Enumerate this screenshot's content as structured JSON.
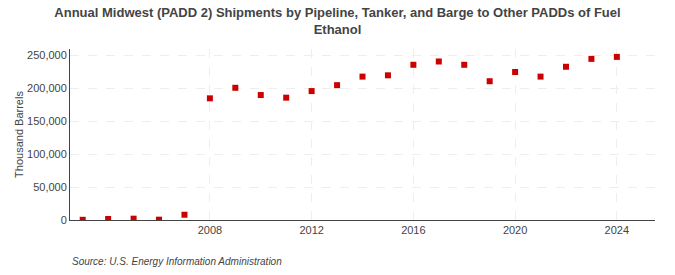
{
  "chart_data": {
    "type": "scatter",
    "title": "Annual Midwest (PADD 2) Shipments by Pipeline, Tanker, and Barge to Other PADDs of Fuel\nEthanol",
    "ylabel": "Thousand Barrels",
    "annotations": [
      "Source: U.S. Energy Information Administration"
    ],
    "x": [
      2003,
      2004,
      2005,
      2006,
      2007,
      2008,
      2009,
      2010,
      2011,
      2012,
      2013,
      2014,
      2015,
      2016,
      2017,
      2018,
      2019,
      2020,
      2021,
      2022,
      2023,
      2024
    ],
    "values": [
      300,
      1500,
      2000,
      500,
      8000,
      185000,
      201000,
      190000,
      186000,
      196000,
      205000,
      218000,
      220000,
      236000,
      241000,
      236000,
      211000,
      225000,
      218000,
      233000,
      245000,
      248000
    ],
    "color": "#cc0000",
    "marker": "square",
    "xlim": [
      2002.5,
      2025.5
    ],
    "xticks": [
      2008,
      2012,
      2016,
      2020,
      2024
    ],
    "ylim": [
      0,
      260000
    ],
    "yticks": [
      0,
      {
        "value": 50000,
        "label": "50,000"
      },
      {
        "value": 100000,
        "label": "100,000"
      },
      {
        "value": 150000,
        "label": "150,000"
      },
      {
        "value": 200000,
        "label": "200,000"
      },
      {
        "value": 250000,
        "label": "250,000"
      }
    ],
    "grid": true
  }
}
